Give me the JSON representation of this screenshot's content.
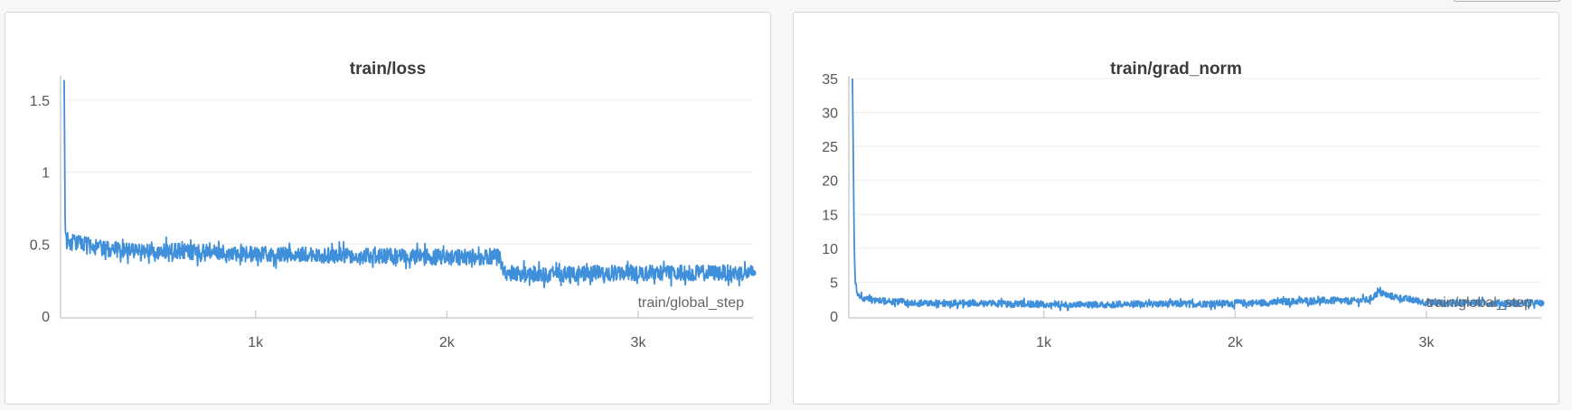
{
  "chart_data": [
    {
      "type": "line",
      "title": "train/loss",
      "xlabel": "train/global_step",
      "ylabel": "",
      "xlim": [
        0,
        3600
      ],
      "ylim": [
        0,
        1.65
      ],
      "x_ticks": [
        1000,
        2000,
        3000
      ],
      "x_tick_labels": [
        "1k",
        "2k",
        "3k"
      ],
      "y_ticks": [
        0,
        0.5,
        1,
        1.5
      ],
      "y_tick_labels": [
        "0",
        "0.5",
        "1",
        "1.5"
      ],
      "grid": true,
      "color": "#3f8fda",
      "series": [
        {
          "x": [
            0,
            5,
            10,
            20,
            50,
            100,
            200,
            300,
            400,
            600,
            800,
            1000,
            1200,
            1400,
            1600,
            1800,
            2000,
            2100,
            2200,
            2250,
            2270,
            2290,
            2300,
            2350,
            2400,
            2600,
            2800,
            3000,
            3200,
            3400,
            3600
          ],
          "values": [
            1.64,
            0.6,
            0.56,
            0.52,
            0.51,
            0.5,
            0.47,
            0.46,
            0.45,
            0.45,
            0.44,
            0.43,
            0.43,
            0.42,
            0.42,
            0.41,
            0.41,
            0.41,
            0.41,
            0.42,
            0.42,
            0.36,
            0.3,
            0.3,
            0.29,
            0.29,
            0.3,
            0.3,
            0.3,
            0.3,
            0.3
          ],
          "noise": 0.055
        }
      ]
    },
    {
      "type": "line",
      "title": "train/grad_norm",
      "xlabel": "train/global_step",
      "ylabel": "",
      "xlim": [
        0,
        3600
      ],
      "ylim": [
        0,
        35
      ],
      "x_ticks": [
        1000,
        2000,
        3000
      ],
      "x_tick_labels": [
        "1k",
        "2k",
        "3k"
      ],
      "y_ticks": [
        0,
        5,
        10,
        15,
        20,
        25,
        30,
        35
      ],
      "y_tick_labels": [
        "0",
        "5",
        "10",
        "15",
        "20",
        "25",
        "30",
        "35"
      ],
      "grid": true,
      "color": "#3f8fda",
      "series": [
        {
          "x": [
            0,
            5,
            10,
            15,
            25,
            40,
            80,
            150,
            300,
            500,
            800,
            1000,
            1200,
            1500,
            1800,
            2000,
            2200,
            2400,
            2600,
            2700,
            2750,
            2800,
            2900,
            3000,
            3100,
            3200,
            3400,
            3600
          ],
          "values": [
            35,
            22,
            9,
            5,
            3.5,
            2.8,
            2.4,
            2.2,
            2.0,
            1.9,
            1.8,
            1.75,
            1.7,
            1.75,
            1.8,
            1.9,
            2.0,
            2.3,
            2.2,
            2.4,
            3.5,
            3.0,
            2.5,
            2.0,
            1.9,
            2.0,
            1.9,
            1.9
          ],
          "noise": 0.5
        }
      ]
    }
  ]
}
